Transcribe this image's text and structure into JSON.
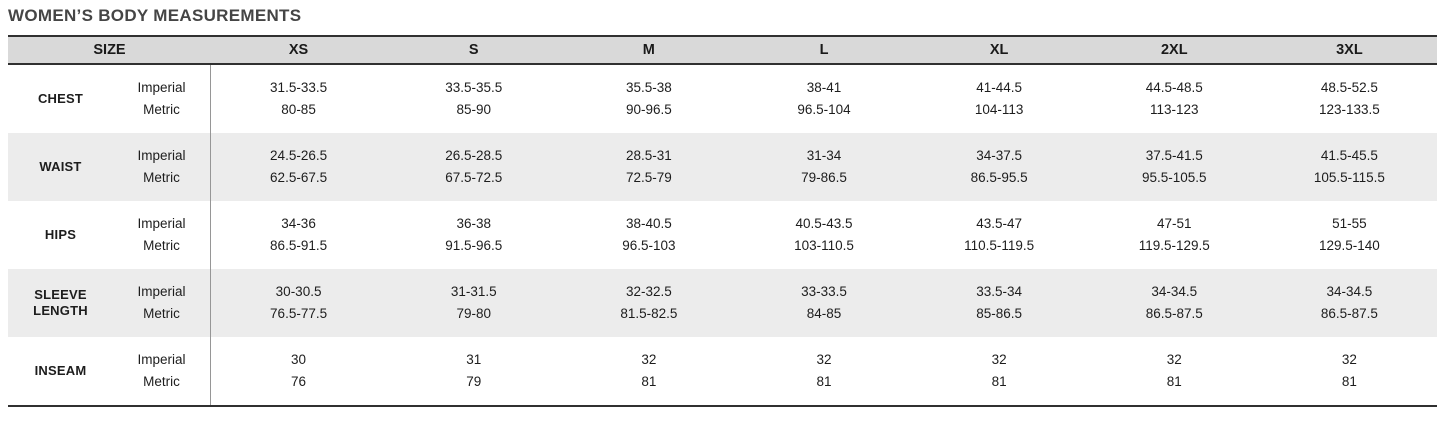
{
  "title": "WOMEN’S BODY MEASUREMENTS",
  "table": {
    "size_header": "SIZE",
    "sizes": [
      "XS",
      "S",
      "M",
      "L",
      "XL",
      "2XL",
      "3XL"
    ],
    "unit_labels": {
      "imperial": "Imperial",
      "metric": "Metric"
    },
    "rows": [
      {
        "name": "CHEST",
        "imperial": [
          "31.5-33.5",
          "33.5-35.5",
          "35.5-38",
          "38-41",
          "41-44.5",
          "44.5-48.5",
          "48.5-52.5"
        ],
        "metric": [
          "80-85",
          "85-90",
          "90-96.5",
          "96.5-104",
          "104-113",
          "113-123",
          "123-133.5"
        ]
      },
      {
        "name": "WAIST",
        "imperial": [
          "24.5-26.5",
          "26.5-28.5",
          "28.5-31",
          "31-34",
          "34-37.5",
          "37.5-41.5",
          "41.5-45.5"
        ],
        "metric": [
          "62.5-67.5",
          "67.5-72.5",
          "72.5-79",
          "79-86.5",
          "86.5-95.5",
          "95.5-105.5",
          "105.5-115.5"
        ]
      },
      {
        "name": "HIPS",
        "imperial": [
          "34-36",
          "36-38",
          "38-40.5",
          "40.5-43.5",
          "43.5-47",
          "47-51",
          "51-55"
        ],
        "metric": [
          "86.5-91.5",
          "91.5-96.5",
          "96.5-103",
          "103-110.5",
          "110.5-119.5",
          "119.5-129.5",
          "129.5-140"
        ]
      },
      {
        "name": "SLEEVE LENGTH",
        "imperial": [
          "30-30.5",
          "31-31.5",
          "32-32.5",
          "33-33.5",
          "33.5-34",
          "34-34.5",
          "34-34.5"
        ],
        "metric": [
          "76.5-77.5",
          "79-80",
          "81.5-82.5",
          "84-85",
          "85-86.5",
          "86.5-87.5",
          "86.5-87.5"
        ]
      },
      {
        "name": "INSEAM",
        "imperial": [
          "30",
          "31",
          "32",
          "32",
          "32",
          "32",
          "32"
        ],
        "metric": [
          "76",
          "79",
          "81",
          "81",
          "81",
          "81",
          "81"
        ]
      }
    ]
  },
  "colors": {
    "title_text": "#454545",
    "header_background": "#d9d9d9",
    "stripe_background": "#ececec",
    "body_text": "#1d1d1d",
    "rule_lines": "#303030",
    "column_divider": "#969696"
  },
  "chart_data": {
    "type": "table",
    "title": "WOMEN’S BODY MEASUREMENTS",
    "columns": [
      "SIZE",
      "XS",
      "S",
      "M",
      "L",
      "XL",
      "2XL",
      "3XL"
    ],
    "row_unit_sublabels": [
      "Imperial",
      "Metric"
    ],
    "rows": [
      {
        "measurement": "CHEST",
        "imperial": [
          "31.5-33.5",
          "33.5-35.5",
          "35.5-38",
          "38-41",
          "41-44.5",
          "44.5-48.5",
          "48.5-52.5"
        ],
        "metric": [
          "80-85",
          "85-90",
          "90-96.5",
          "96.5-104",
          "104-113",
          "113-123",
          "123-133.5"
        ]
      },
      {
        "measurement": "WAIST",
        "imperial": [
          "24.5-26.5",
          "26.5-28.5",
          "28.5-31",
          "31-34",
          "34-37.5",
          "37.5-41.5",
          "41.5-45.5"
        ],
        "metric": [
          "62.5-67.5",
          "67.5-72.5",
          "72.5-79",
          "79-86.5",
          "86.5-95.5",
          "95.5-105.5",
          "105.5-115.5"
        ]
      },
      {
        "measurement": "HIPS",
        "imperial": [
          "34-36",
          "36-38",
          "38-40.5",
          "40.5-43.5",
          "43.5-47",
          "47-51",
          "51-55"
        ],
        "metric": [
          "86.5-91.5",
          "91.5-96.5",
          "96.5-103",
          "103-110.5",
          "110.5-119.5",
          "119.5-129.5",
          "129.5-140"
        ]
      },
      {
        "measurement": "SLEEVE LENGTH",
        "imperial": [
          "30-30.5",
          "31-31.5",
          "32-32.5",
          "33-33.5",
          "33.5-34",
          "34-34.5",
          "34-34.5"
        ],
        "metric": [
          "76.5-77.5",
          "79-80",
          "81.5-82.5",
          "84-85",
          "85-86.5",
          "86.5-87.5",
          "86.5-87.5"
        ]
      },
      {
        "measurement": "INSEAM",
        "imperial": [
          "30",
          "31",
          "32",
          "32",
          "32",
          "32",
          "32"
        ],
        "metric": [
          "76",
          "79",
          "81",
          "81",
          "81",
          "81",
          "81"
        ]
      }
    ]
  }
}
